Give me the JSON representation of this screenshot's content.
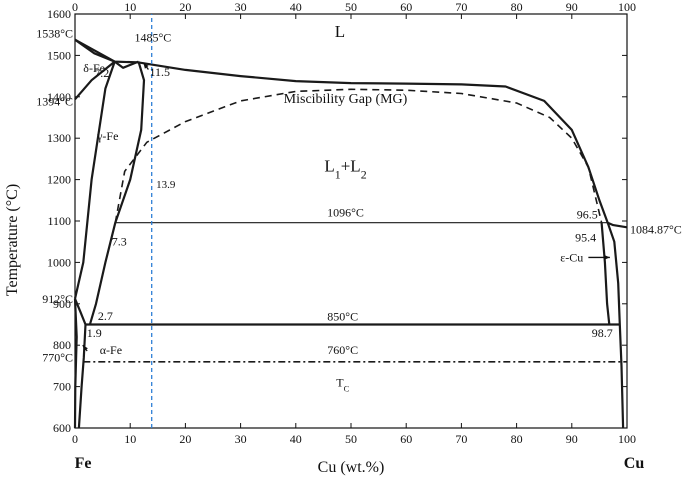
{
  "chart_data": {
    "type": "line",
    "title": "",
    "xlabel": "Cu (wt.%)",
    "ylabel": "Temperature (°C)",
    "xlim": [
      0,
      100
    ],
    "ylim": [
      600,
      1600
    ],
    "x_ticks": [
      0,
      10,
      20,
      30,
      40,
      50,
      60,
      70,
      80,
      90,
      100
    ],
    "y_ticks": [
      600,
      700,
      800,
      900,
      1000,
      1100,
      1200,
      1300,
      1400,
      1500,
      1600
    ],
    "grid": false,
    "legend": "none",
    "end_labels": {
      "left": "Fe",
      "right": "Cu"
    },
    "series": [
      {
        "style": "solid",
        "values": [
          [
            0,
            1538
          ],
          [
            7.2,
            1485
          ],
          [
            11.5,
            1483
          ],
          [
            20,
            1465
          ],
          [
            30,
            1450
          ],
          [
            40,
            1438
          ],
          [
            50,
            1433
          ],
          [
            60,
            1432
          ],
          [
            70,
            1430
          ],
          [
            78,
            1425
          ],
          [
            85,
            1390
          ],
          [
            90,
            1320
          ],
          [
            93,
            1230
          ],
          [
            95,
            1150
          ],
          [
            96.5,
            1096
          ],
          [
            97.5,
            1090
          ],
          [
            100,
            1084.87
          ]
        ]
      },
      {
        "style": "solid",
        "values": [
          [
            0,
            1394
          ],
          [
            3,
            1440
          ],
          [
            7.2,
            1485
          ]
        ]
      },
      {
        "style": "solid",
        "values": [
          [
            0,
            1538
          ],
          [
            3.5,
            1505
          ],
          [
            7.2,
            1485
          ]
        ]
      },
      {
        "style": "solid",
        "values": [
          [
            7.2,
            1485
          ],
          [
            8.7,
            1470
          ],
          [
            11.5,
            1485
          ]
        ]
      },
      {
        "style": "solid",
        "values": [
          [
            7.2,
            1485
          ],
          [
            5.5,
            1420
          ],
          [
            3,
            1200
          ],
          [
            1.5,
            1000
          ],
          [
            0,
            912
          ]
        ]
      },
      {
        "style": "solid",
        "values": [
          [
            11.5,
            1485
          ],
          [
            12.5,
            1440
          ],
          [
            12,
            1320
          ],
          [
            10,
            1200
          ],
          [
            7.3,
            1096
          ],
          [
            5.5,
            1000
          ],
          [
            3.8,
            900
          ],
          [
            2.7,
            850
          ]
        ]
      },
      {
        "style": "solid",
        "values": [
          [
            0,
            912
          ],
          [
            1,
            880
          ],
          [
            1.9,
            850
          ]
        ]
      },
      {
        "style": "solid",
        "values": [
          [
            0,
            912
          ],
          [
            0.3,
            820
          ],
          [
            0.2,
            770
          ],
          [
            0.05,
            700
          ],
          [
            0,
            600
          ]
        ]
      },
      {
        "style": "solid",
        "values": [
          [
            1.9,
            850
          ],
          [
            1.6,
            770
          ],
          [
            1.2,
            700
          ],
          [
            0.7,
            600
          ]
        ]
      },
      {
        "style": "solid",
        "values": [
          [
            1.9,
            850
          ],
          [
            98.7,
            850
          ]
        ]
      },
      {
        "style": "solid",
        "values": [
          [
            7.3,
            1096
          ],
          [
            96.5,
            1096
          ]
        ]
      },
      {
        "style": "solid",
        "values": [
          [
            95.4,
            1096
          ],
          [
            96,
            1000
          ],
          [
            96.4,
            900
          ],
          [
            96.8,
            850
          ]
        ]
      },
      {
        "style": "solid",
        "values": [
          [
            98.7,
            850
          ],
          [
            99,
            750
          ],
          [
            99.3,
            600
          ]
        ]
      },
      {
        "style": "solid",
        "values": [
          [
            96.5,
            1096
          ],
          [
            97.7,
            1050
          ],
          [
            98.4,
            950
          ],
          [
            98.7,
            850
          ]
        ]
      },
      {
        "style": "dashed",
        "values": [
          [
            7.3,
            1096
          ],
          [
            9,
            1220
          ],
          [
            13,
            1290
          ],
          [
            20,
            1340
          ],
          [
            30,
            1390
          ],
          [
            40,
            1413
          ],
          [
            50,
            1418
          ],
          [
            60,
            1416
          ],
          [
            70,
            1408
          ],
          [
            80,
            1385
          ],
          [
            86,
            1350
          ],
          [
            90,
            1300
          ],
          [
            93,
            1230
          ],
          [
            95.4,
            1096
          ]
        ]
      },
      {
        "style": "dashdot",
        "values": [
          [
            1.5,
            760
          ],
          [
            100,
            760
          ]
        ]
      },
      {
        "style": "blue-dashed",
        "values": [
          [
            13.9,
            600
          ],
          [
            13.9,
            1600
          ]
        ]
      }
    ],
    "annotations": [
      {
        "text": "1538°C",
        "x": 0,
        "y": 1538,
        "anchor": "end",
        "dx": -2,
        "dy": -2
      },
      {
        "text": "1485°C",
        "x": 11.5,
        "y": 1485,
        "anchor": "start",
        "dx": -4,
        "dy": -20
      },
      {
        "text": "1394°C",
        "x": 0,
        "y": 1394,
        "anchor": "end",
        "dx": -2,
        "dy": 6
      },
      {
        "text": "δ-Fe",
        "x": 1.5,
        "y": 1470,
        "anchor": "start",
        "dx": 0,
        "dy": 4
      },
      {
        "text": "7.2",
        "x": 6.2,
        "y": 1448,
        "anchor": "end",
        "dx": 0,
        "dy": 0
      },
      {
        "text": "11.5",
        "x": 13.5,
        "y": 1450,
        "anchor": "start",
        "dx": 0,
        "dy": 0
      },
      {
        "text": "L",
        "x": 48,
        "y": 1545,
        "anchor": "middle",
        "dx": 0,
        "dy": 0,
        "big": true
      },
      {
        "text": "Miscibility Gap (MG)",
        "x": 49,
        "y": 1385,
        "anchor": "middle",
        "dx": 0,
        "dy": 0,
        "size": "lg"
      },
      {
        "text": "γ-Fe",
        "x": 4,
        "y": 1310,
        "anchor": "start",
        "dx": 0,
        "dy": 6
      },
      {
        "text": "13.9",
        "x": 14.7,
        "y": 1180,
        "anchor": "start",
        "dx": 0,
        "dy": 0,
        "small": true
      },
      {
        "text": "1096°C",
        "x": 49,
        "y": 1096,
        "anchor": "middle",
        "dx": 0,
        "dy": -6
      },
      {
        "text": "96.5",
        "x": 94.7,
        "y": 1096,
        "anchor": "end",
        "dx": 0,
        "dy": -4
      },
      {
        "text": "1084.87°C",
        "x": 100,
        "y": 1084.87,
        "anchor": "start",
        "dx": 3,
        "dy": 6
      },
      {
        "text": "7.3",
        "x": 8,
        "y": 1050,
        "anchor": "middle",
        "dx": 0,
        "dy": 4
      },
      {
        "text": "95.4",
        "x": 92.5,
        "y": 1060,
        "anchor": "middle",
        "dx": 0,
        "dy": 4
      },
      {
        "text": "ε-Cu",
        "x": 90,
        "y": 1012,
        "anchor": "middle",
        "dx": 0,
        "dy": 4
      },
      {
        "text": "912°C",
        "x": 0,
        "y": 912,
        "anchor": "end",
        "dx": -2,
        "dy": 4
      },
      {
        "text": "2.7",
        "x": 5.5,
        "y": 870,
        "anchor": "middle",
        "dx": 0,
        "dy": 4
      },
      {
        "text": "850°C",
        "x": 48.5,
        "y": 850,
        "anchor": "middle",
        "dx": 0,
        "dy": -4
      },
      {
        "text": "1.9",
        "x": 3.5,
        "y": 820,
        "anchor": "middle",
        "dx": 0,
        "dy": 0
      },
      {
        "text": "98.7",
        "x": 95.5,
        "y": 820,
        "anchor": "middle",
        "dx": 0,
        "dy": 0
      },
      {
        "text": "α-Fe",
        "x": 6.5,
        "y": 788,
        "anchor": "middle",
        "dx": 0,
        "dy": 4
      },
      {
        "text": "760°C",
        "x": 48.5,
        "y": 760,
        "anchor": "middle",
        "dx": 0,
        "dy": -8
      },
      {
        "text": "770°C",
        "x": 0,
        "y": 770,
        "anchor": "end",
        "dx": -2,
        "dy": 4
      }
    ],
    "labels_with_subscripts": [
      {
        "parts": [
          [
            "L",
            ""
          ],
          [
            "1",
            "sub"
          ],
          [
            "+L",
            ""
          ],
          [
            "2",
            "sub"
          ]
        ],
        "x": 49,
        "y": 1220,
        "size": "big"
      },
      {
        "parts": [
          [
            "T",
            ""
          ],
          [
            "C",
            "sub"
          ]
        ],
        "x": 48.5,
        "y": 700,
        "size": "normal"
      }
    ],
    "arrows": [
      {
        "from": [
          13.3,
          1466
        ],
        "to": [
          12.4,
          1482
        ]
      },
      {
        "from": [
          2.2,
          786
        ],
        "to": [
          1.4,
          800
        ]
      },
      {
        "from": [
          93,
          1012
        ],
        "to": [
          96.9,
          1012
        ]
      }
    ]
  }
}
